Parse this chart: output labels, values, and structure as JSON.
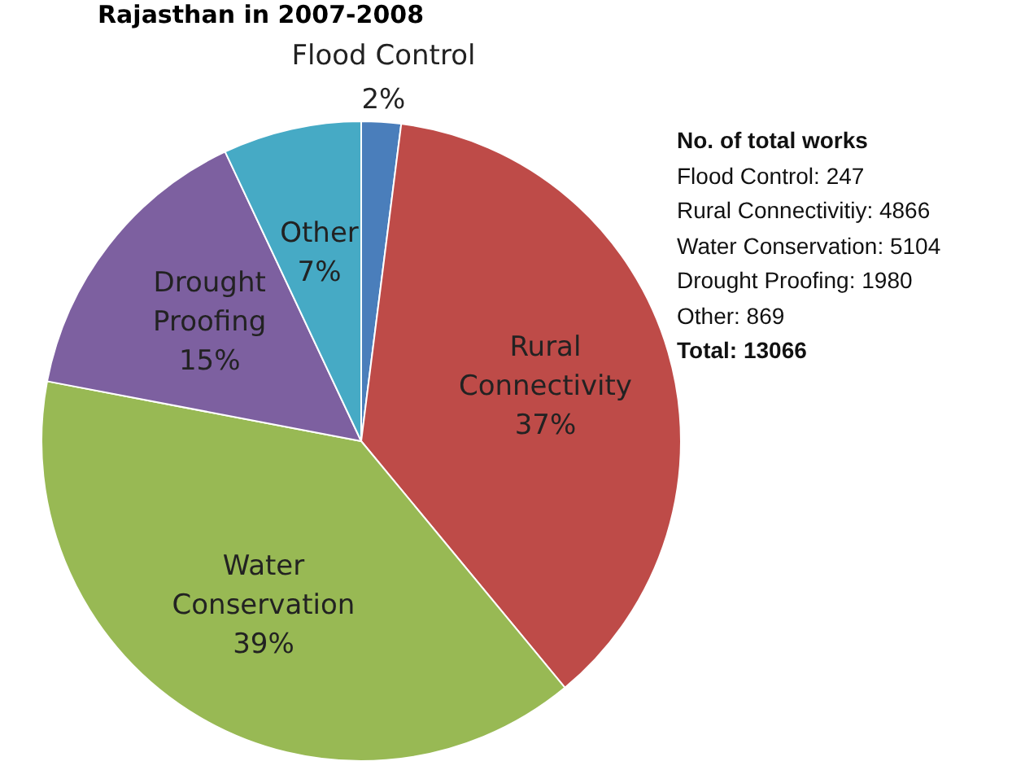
{
  "chart_data": {
    "type": "pie",
    "title": "Rajasthan in 2007-2008",
    "categories": [
      "Flood Control",
      "Rural Connectivity",
      "Water Conservation",
      "Drought Proofing",
      "Other"
    ],
    "values": [
      2,
      37,
      39,
      15,
      7
    ],
    "value_labels": [
      "2%",
      "37%",
      "39%",
      "15%",
      "7%"
    ],
    "colors": [
      "#4a7ebb",
      "#be4b48",
      "#98b954",
      "#7d60a0",
      "#46aac5"
    ],
    "legend": false,
    "annotations": [
      "No. of total works",
      "Flood Control: 247",
      "Rural Connectivitiy: 4866",
      "Water Conservation: 5104",
      "Drought Proofing: 1980",
      "Other: 869",
      "Total: 13066"
    ]
  }
}
